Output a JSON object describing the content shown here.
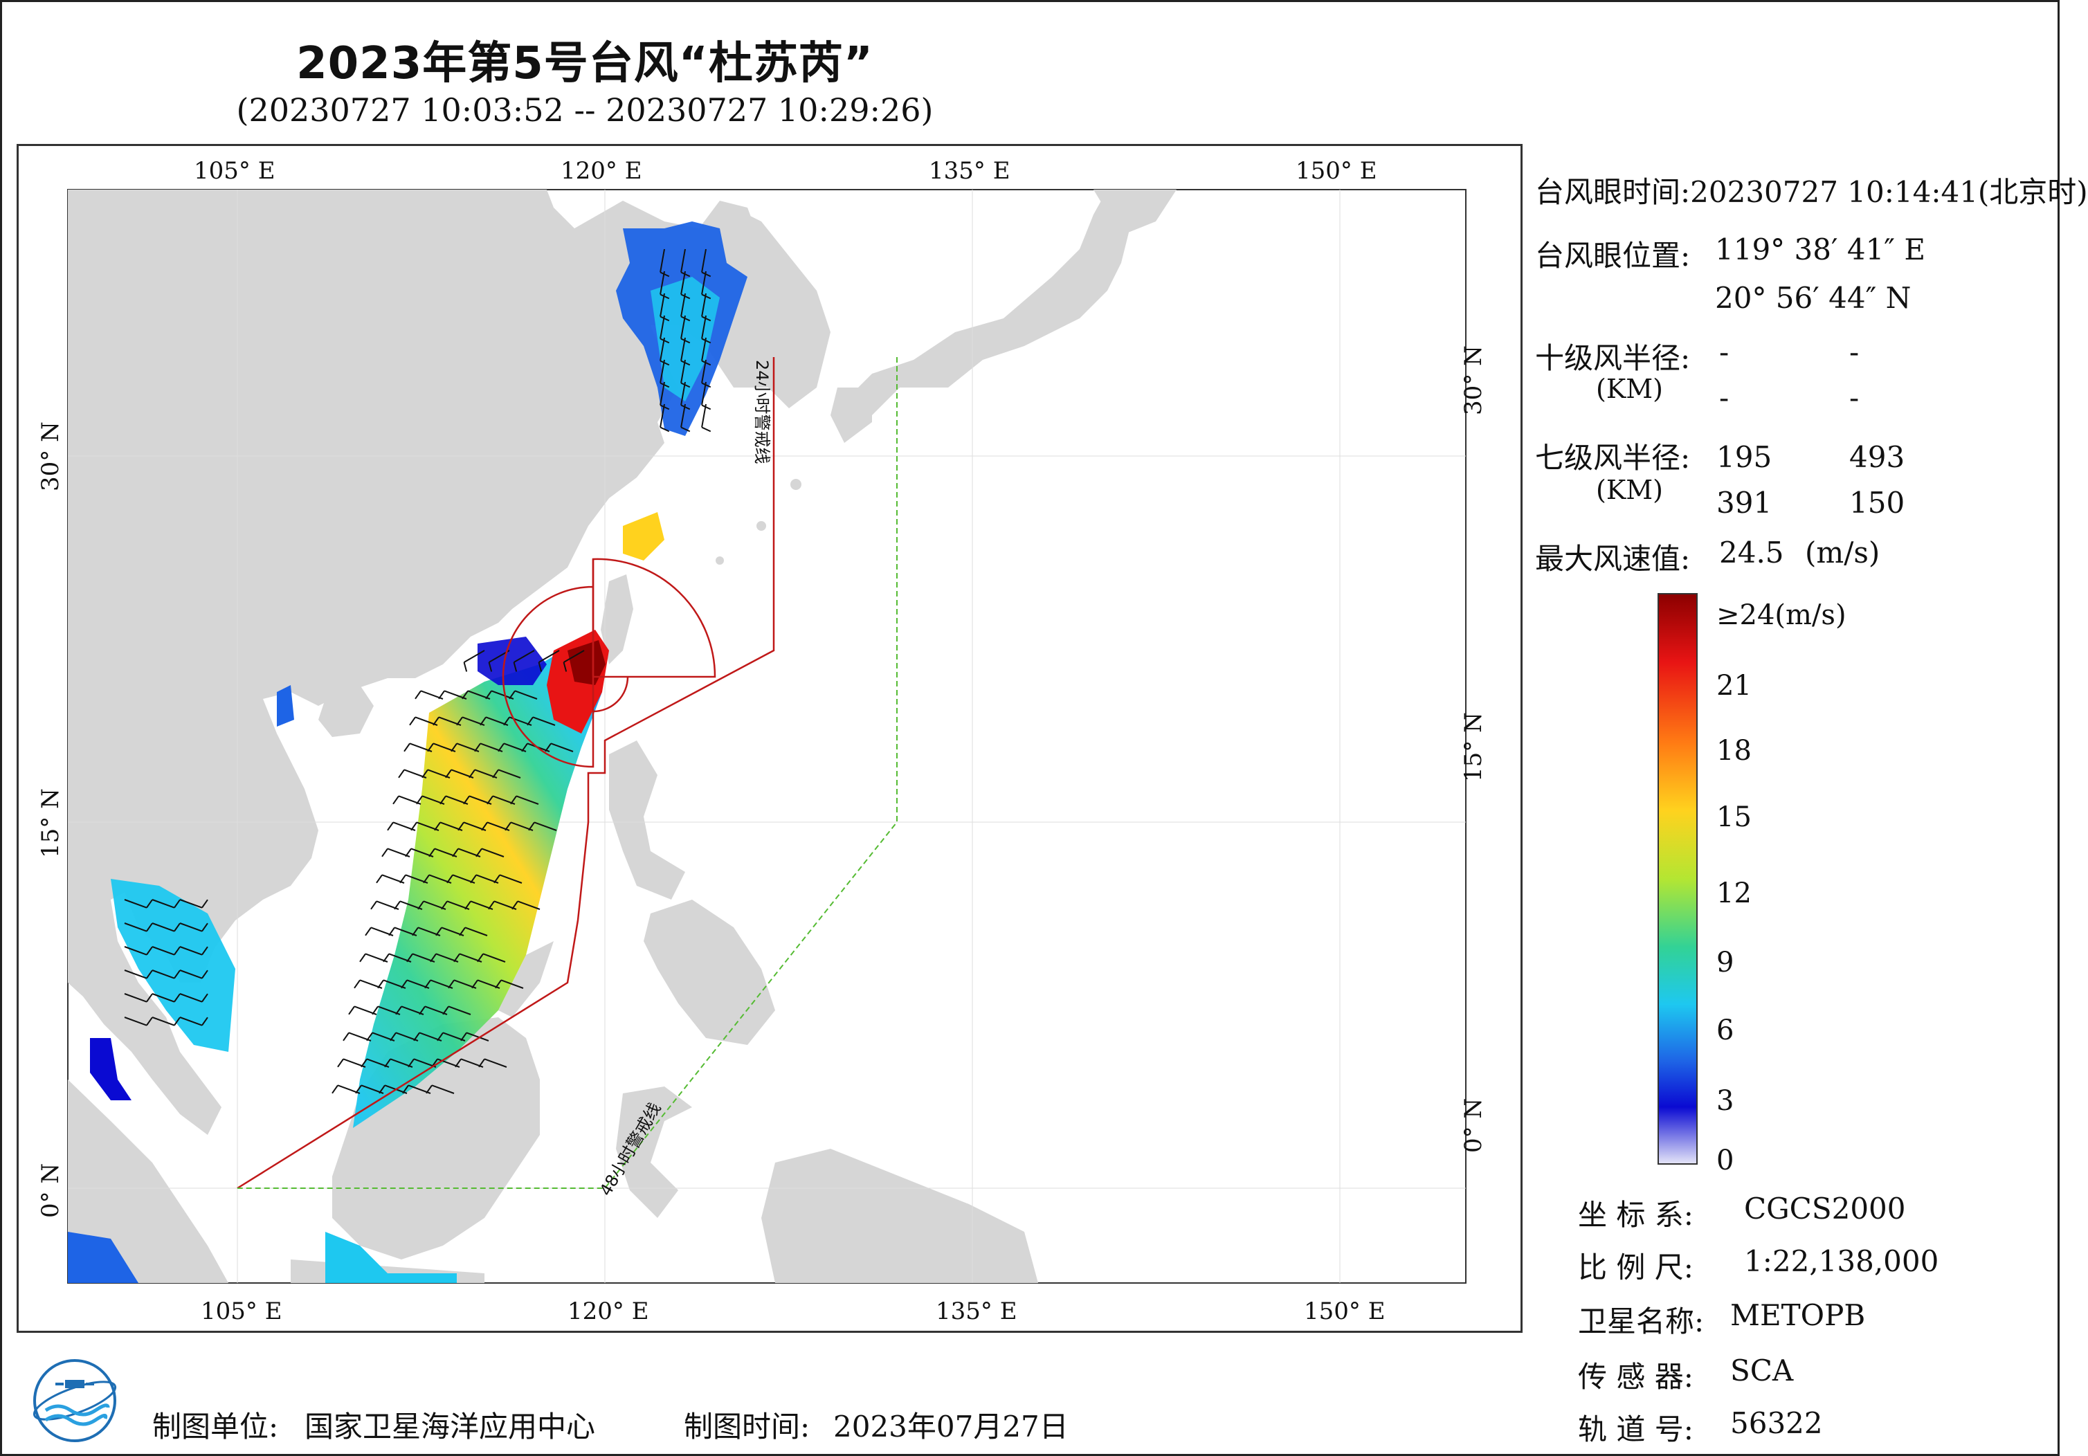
{
  "title": "2023年第5号台风“杜苏芮”",
  "subtitle": "(20230727 10:03:52 -- 20230727 10:29:26)",
  "axes": {
    "lon_labels": [
      "105° E",
      "120° E",
      "135° E",
      "150° E"
    ],
    "lat_labels": [
      "30° N",
      "15° N",
      "0° N"
    ]
  },
  "warning_lines": {
    "line_24h": "24小时警戒线",
    "line_48h": "48小时警戒线"
  },
  "info": {
    "eye_time_label": "台风眼时间:",
    "eye_time_value": "20230727 10:14:41(北京时)",
    "eye_pos_label": "台风眼位置:",
    "eye_lon": "119° 38′ 41″ E",
    "eye_lat": "20° 56′ 44″ N",
    "r10_label": "十级风半径:",
    "r10_unit": "(KM)",
    "r10_values": [
      "-",
      "-",
      "-",
      "-"
    ],
    "r7_label": "七级风半径:",
    "r7_unit": "(KM)",
    "r7_values": [
      "195",
      "493",
      "391",
      "150"
    ],
    "max_wind_label": "最大风速值:",
    "max_wind_value": "24.5",
    "max_wind_unit": "(m/s)"
  },
  "legend": {
    "ticks": [
      "≥24(m/s)",
      "21",
      "18",
      "15",
      "12",
      "9",
      "6",
      "3",
      "0"
    ],
    "colors": [
      "#8b0000",
      "#e81414",
      "#ff7a14",
      "#ffd21e",
      "#b4e632",
      "#32d296",
      "#1ec8f0",
      "#1e64e6",
      "#0a0ad2",
      "#c8c8f0"
    ]
  },
  "meta": {
    "crs_label": "坐 标 系:",
    "crs_value": "CGCS2000",
    "scale_label": "比 例 尺:",
    "scale_value": "1:22,138,000",
    "sat_label": "卫星名称:",
    "sat_value": "METOPB",
    "sensor_label": "传 感 器:",
    "sensor_value": "SCA",
    "orbit_label": "轨 道 号:",
    "orbit_value": "56322"
  },
  "footer": {
    "org_label": "制图单位:",
    "org_value": "国家卫星海洋应用中心",
    "date_label": "制图时间:",
    "date_value": "2023年07月27日"
  }
}
